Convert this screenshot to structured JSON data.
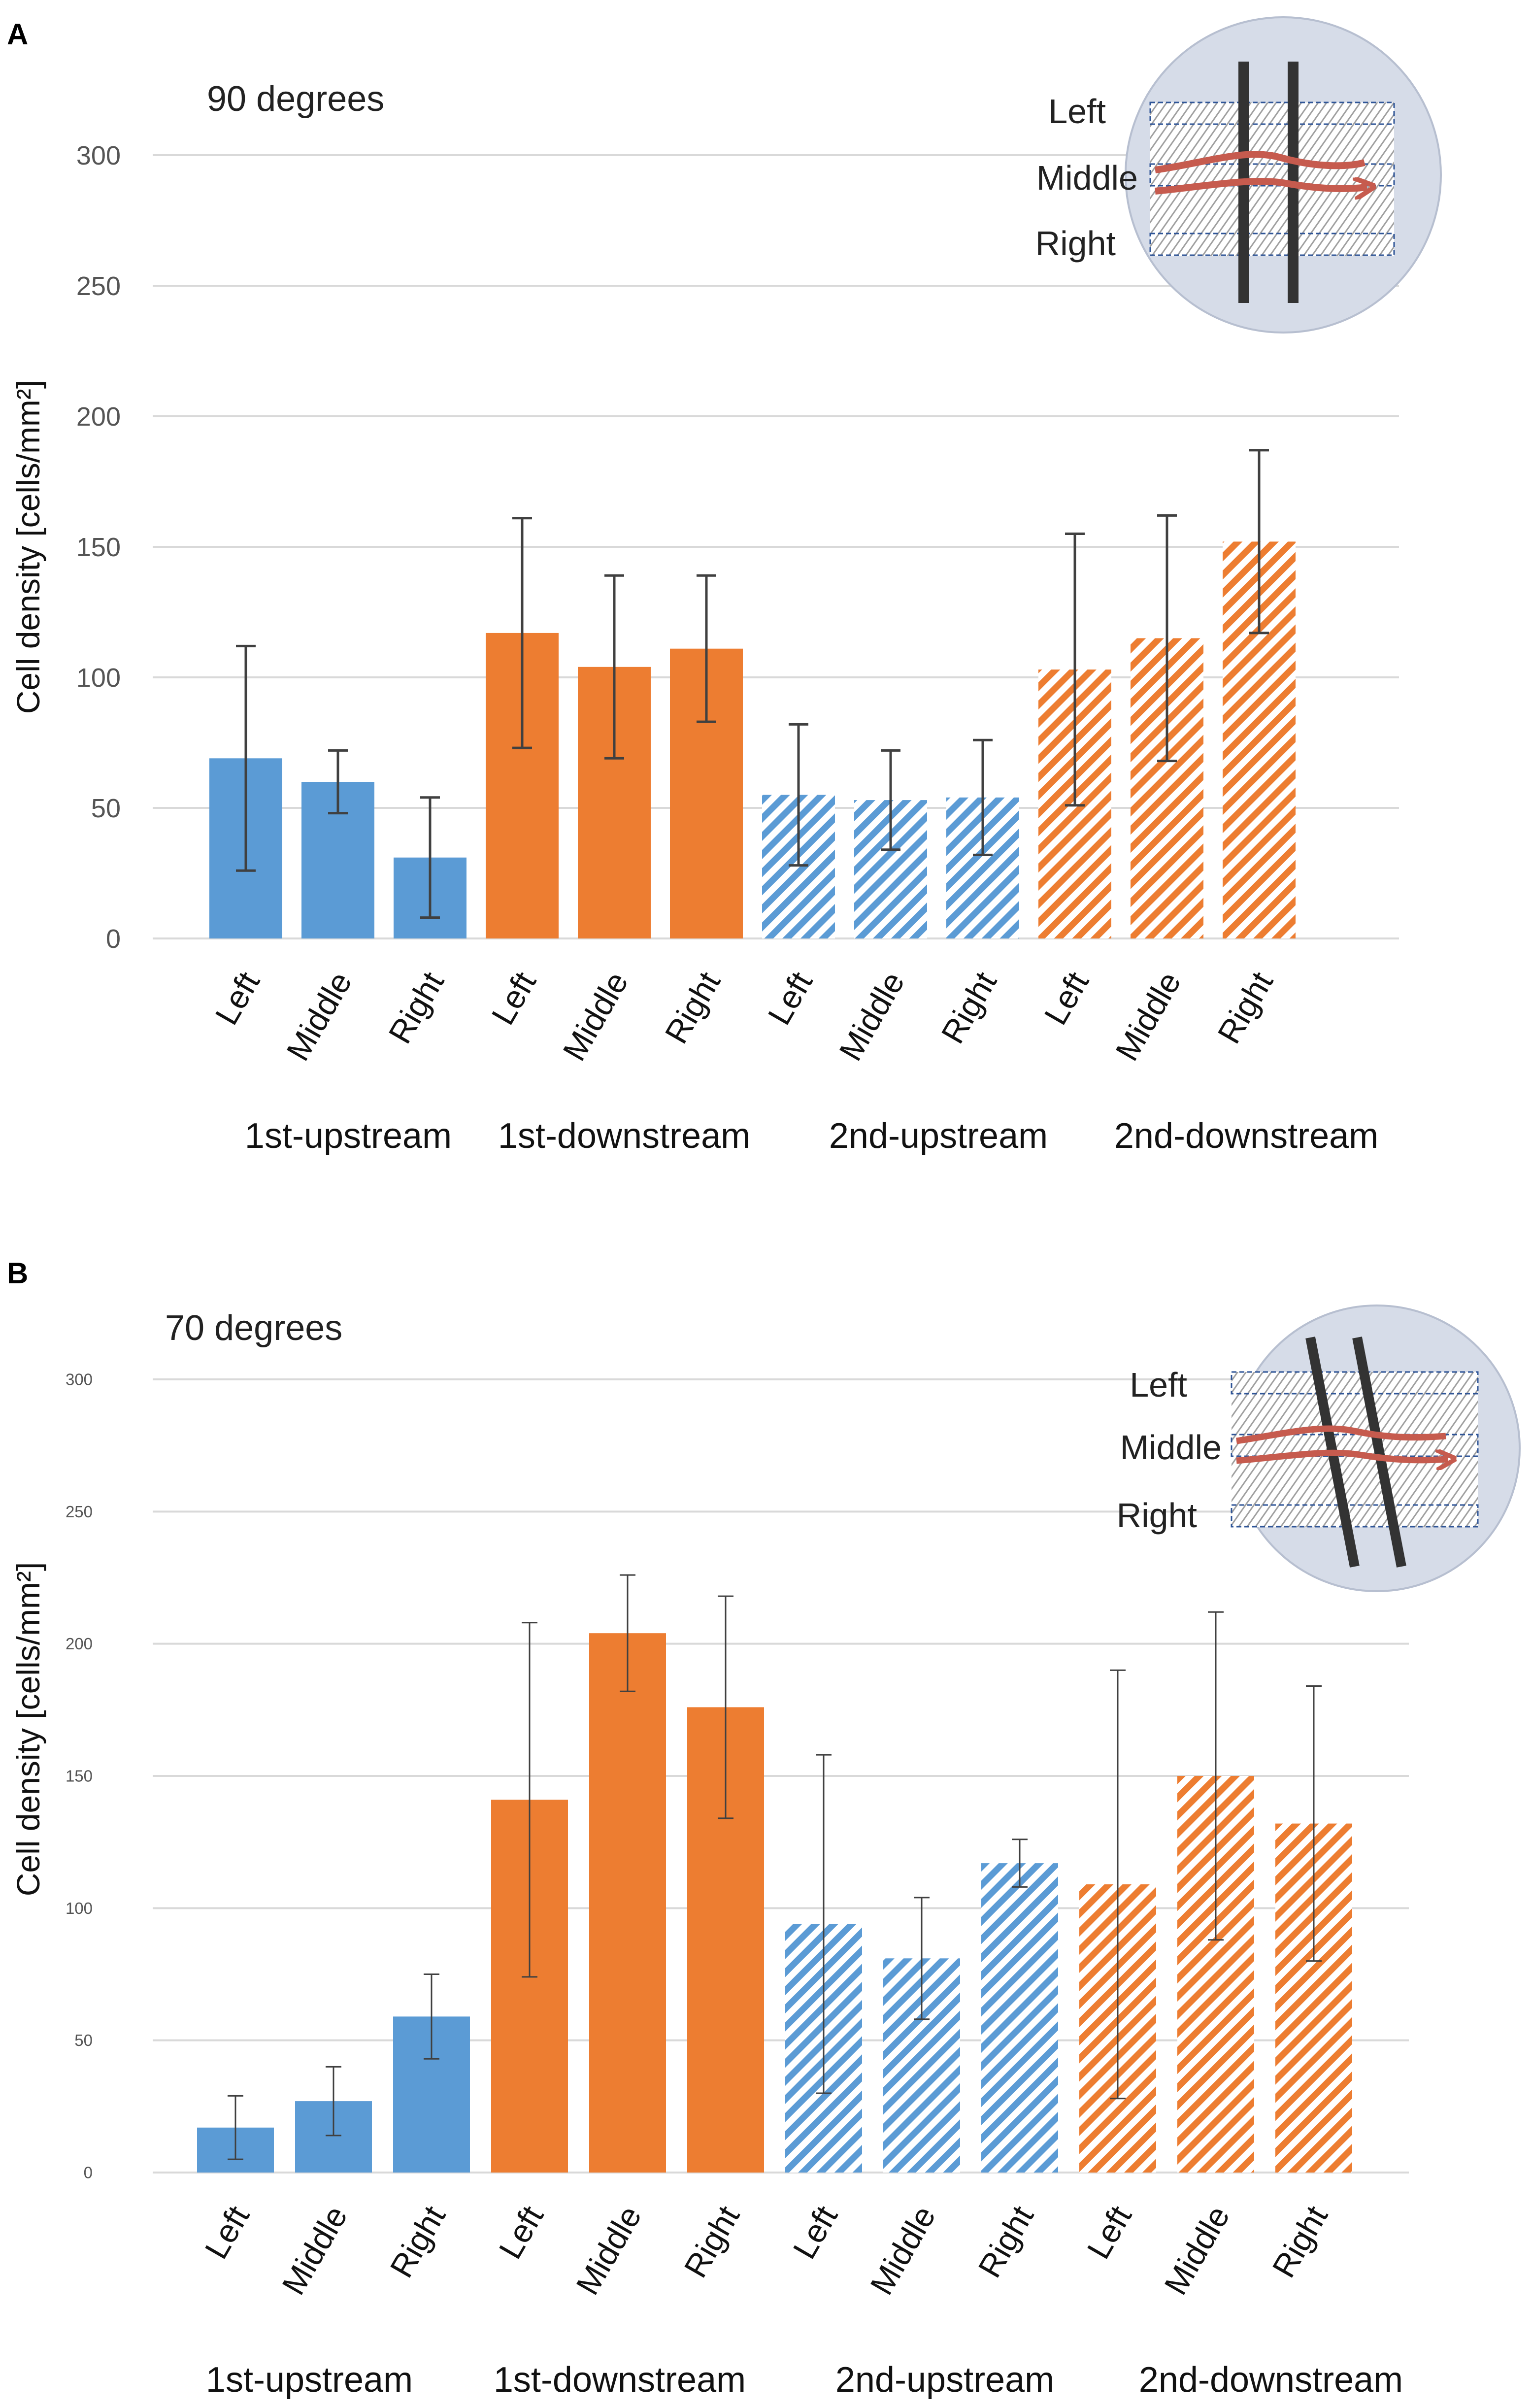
{
  "colors": {
    "blue": "#5b9bd5",
    "orange": "#ed7d31",
    "grid": "#d9d9d9",
    "error": "#404040",
    "inset_bg": "#d6dce8",
    "inset_arrow": "#c65b4e"
  },
  "inset_labels": [
    "Left",
    "Middle",
    "Right"
  ],
  "chart_data": [
    {
      "type": "bar",
      "panel": "A",
      "title": "90 degrees",
      "ylabel": "Cell density [cells/mm²]",
      "xlabel": "",
      "ylim": [
        0,
        300
      ],
      "yticks": [
        "0",
        "50",
        "100",
        "150",
        "200",
        "250",
        "300"
      ],
      "grid": true,
      "groups": [
        "1st-upstream",
        "1st-downstream",
        "2nd-upstream",
        "2nd-downstream"
      ],
      "categories": [
        "Left",
        "Middle",
        "Right",
        "Left",
        "Middle",
        "Right",
        "Left",
        "Middle",
        "Right",
        "Left",
        "Middle",
        "Right"
      ],
      "values": [
        69,
        60,
        31,
        117,
        104,
        111,
        55,
        53,
        54,
        103,
        115,
        152
      ],
      "errors": [
        43,
        12,
        23,
        44,
        35,
        28,
        27,
        19,
        22,
        52,
        47,
        35
      ],
      "colors": [
        "blue",
        "blue",
        "blue",
        "orange",
        "orange",
        "orange",
        "blue",
        "blue",
        "blue",
        "orange",
        "orange",
        "orange"
      ],
      "hatched": [
        false,
        false,
        false,
        false,
        false,
        false,
        true,
        true,
        true,
        true,
        true,
        true
      ]
    },
    {
      "type": "bar",
      "panel": "B",
      "title": "70 degrees",
      "ylabel": "Cell density [cells/mm²]",
      "xlabel": "",
      "ylim": [
        0,
        300
      ],
      "yticks": [
        "0",
        "50",
        "100",
        "150",
        "200",
        "250",
        "300"
      ],
      "grid": true,
      "groups": [
        "1st-upstream",
        "1st-downstream",
        "2nd-upstream",
        "2nd-downstream"
      ],
      "categories": [
        "Left",
        "Middle",
        "Right",
        "Left",
        "Middle",
        "Right",
        "Left",
        "Middle",
        "Right",
        "Left",
        "Middle",
        "Right"
      ],
      "values": [
        17,
        27,
        59,
        141,
        204,
        176,
        94,
        81,
        117,
        109,
        150,
        132
      ],
      "errors": [
        12,
        13,
        16,
        67,
        22,
        42,
        64,
        23,
        9,
        81,
        62,
        52
      ],
      "colors": [
        "blue",
        "blue",
        "blue",
        "orange",
        "orange",
        "orange",
        "blue",
        "blue",
        "blue",
        "orange",
        "orange",
        "orange"
      ],
      "hatched": [
        false,
        false,
        false,
        false,
        false,
        false,
        true,
        true,
        true,
        true,
        true,
        true
      ]
    }
  ]
}
